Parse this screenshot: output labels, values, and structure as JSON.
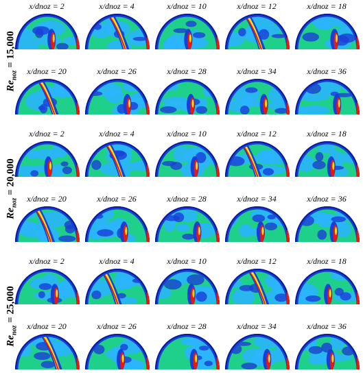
{
  "groups": [
    {
      "re_base": "Re",
      "re_sub": "noz",
      "re_value": " = 15,000",
      "rows": [
        [
          "x/dnoz = 2",
          "x/dnoz = 4",
          "x/dnoz = 10",
          "x/dnoz = 12",
          "x/dnoz = 18"
        ],
        [
          "x/dnoz = 20",
          "x/dnoz = 26",
          "x/dnoz = 28",
          "x/dnoz = 34",
          "x/dnoz = 36"
        ]
      ]
    },
    {
      "re_base": "Re",
      "re_sub": "noz",
      "re_value": " = 20,000",
      "rows": [
        [
          "x/dnoz = 2",
          "x/dnoz = 4",
          "x/dnoz = 10",
          "x/dnoz = 12",
          "x/dnoz = 18"
        ],
        [
          "x/dnoz = 20",
          "x/dnoz = 26",
          "x/dnoz = 28",
          "x/dnoz = 34",
          "x/dnoz = 36"
        ]
      ]
    },
    {
      "re_base": "Re",
      "re_sub": "noz",
      "re_value": " = 25,000",
      "rows": [
        [
          "x/dnoz = 2",
          "x/dnoz = 4",
          "x/dnoz = 10",
          "x/dnoz = 12",
          "x/dnoz = 18"
        ],
        [
          "x/dnoz = 20",
          "x/dnoz = 26",
          "x/dnoz = 28",
          "x/dnoz = 34",
          "x/dnoz = 36"
        ]
      ]
    }
  ],
  "contour_colors": {
    "background_field": "#1fd08a",
    "low": "#1a3fd6",
    "deep_low": "#0a1a9a",
    "mid": "#2bb4ff",
    "high": "#ffe11a",
    "peak": "#e8190f"
  }
}
